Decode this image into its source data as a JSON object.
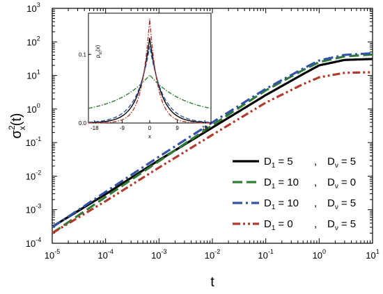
{
  "chart_data": {
    "type": "line",
    "xscale": "log",
    "yscale": "log",
    "xlabel": "t",
    "ylabel": {
      "base": "σ",
      "sup": "2",
      "sub": "x",
      "tail": "(t)"
    },
    "xlim": [
      1e-05,
      10
    ],
    "ylim": [
      0.0001,
      1000
    ],
    "xticks": [
      {
        "v": 1e-05,
        "base": "10",
        "exp": "-5"
      },
      {
        "v": 0.0001,
        "base": "10",
        "exp": "-4"
      },
      {
        "v": 0.001,
        "base": "10",
        "exp": "-3"
      },
      {
        "v": 0.01,
        "base": "10",
        "exp": "-2"
      },
      {
        "v": 0.1,
        "base": "10",
        "exp": "-1"
      },
      {
        "v": 1,
        "base": "10",
        "exp": "0"
      },
      {
        "v": 10,
        "base": "10",
        "exp": "1"
      }
    ],
    "yticks": [
      {
        "v": 0.0001,
        "base": "10",
        "exp": "-4"
      },
      {
        "v": 0.001,
        "base": "10",
        "exp": "-3"
      },
      {
        "v": 0.01,
        "base": "10",
        "exp": "-2"
      },
      {
        "v": 0.1,
        "base": "10",
        "exp": "-1"
      },
      {
        "v": 1,
        "base": "10",
        "exp": "0"
      },
      {
        "v": 10,
        "base": "10",
        "exp": "1"
      },
      {
        "v": 100,
        "base": "10",
        "exp": "2"
      },
      {
        "v": 1000,
        "base": "10",
        "exp": "3"
      }
    ],
    "legend_position": "lower-right",
    "series": [
      {
        "name": "D1 = 5 , Dv = 5",
        "legend": {
          "d1": "5",
          "dv": "5"
        },
        "color": "#000000",
        "dash": "solid",
        "x": [
          1e-05,
          0.0001,
          0.001,
          0.01,
          0.1,
          0.5,
          1,
          3,
          10
        ],
        "y": [
          0.00031,
          0.0029,
          0.03,
          0.28,
          2.6,
          11,
          20,
          29,
          31
        ]
      },
      {
        "name": "D1 = 10 , Dv = 0",
        "legend": {
          "d1": "10",
          "dv": "0"
        },
        "color": "#2e7d32",
        "dash": "dash",
        "x": [
          1e-05,
          0.0001,
          0.001,
          0.01,
          0.1,
          0.5,
          1,
          3,
          10
        ],
        "y": [
          0.0002,
          0.0024,
          0.028,
          0.33,
          3.6,
          14.5,
          25,
          37,
          42
        ]
      },
      {
        "name": "D1 = 10 , Dv = 5",
        "legend": {
          "d1": "10",
          "dv": "5"
        },
        "color": "#3353a6",
        "dash": "dash-dot",
        "x": [
          1e-05,
          0.0001,
          0.001,
          0.01,
          0.1,
          0.5,
          1,
          3,
          10
        ],
        "y": [
          0.0003,
          0.0034,
          0.038,
          0.4,
          4,
          16,
          28,
          41,
          46
        ]
      },
      {
        "name": "D1 = 0 , Dv = 5",
        "legend": {
          "d1": "0",
          "dv": "5"
        },
        "color": "#b03a2e",
        "dash": "dash-dot-dot",
        "x": [
          1e-05,
          0.0001,
          0.001,
          0.01,
          0.1,
          0.5,
          1,
          3,
          10
        ],
        "y": [
          0.0002,
          0.0018,
          0.018,
          0.17,
          1.55,
          5.5,
          8.8,
          12,
          12.5
        ]
      }
    ],
    "legend_labels": {
      "d1_base": "D",
      "d1_sub": "1",
      "dv_base": "D",
      "dv_sub": "ν",
      "eq": "=",
      "comma": ","
    },
    "inset": {
      "type": "line",
      "xlabel": "x",
      "ylabel": {
        "base": "ρ",
        "sub": "st",
        "tail": "(x)"
      },
      "xlim": [
        -20,
        20
      ],
      "ylim": [
        0,
        0.16
      ],
      "xticks": [
        "-18",
        "-9",
        "0",
        "9",
        "18"
      ],
      "xtick_values": [
        -18,
        -9,
        0,
        9,
        18
      ],
      "yticks": [
        "0.0",
        "0.1"
      ],
      "ytick_values": [
        0,
        0.1
      ],
      "series": [
        {
          "color": "#000000",
          "dash": "solid",
          "peak": 0.124,
          "scale": 3.6,
          "floor": 0
        },
        {
          "color": "#2e7d32",
          "dash": "dash-dot",
          "peak": 0.07,
          "scale": 11,
          "floor": 0.012
        },
        {
          "color": "#3353a6",
          "dash": "dash",
          "peak": 0.112,
          "scale": 4.3,
          "floor": 0
        },
        {
          "color": "#b03a2e",
          "dash": "dash-dot",
          "peak": 0.152,
          "scale": 2.6,
          "floor": 0
        }
      ]
    }
  }
}
